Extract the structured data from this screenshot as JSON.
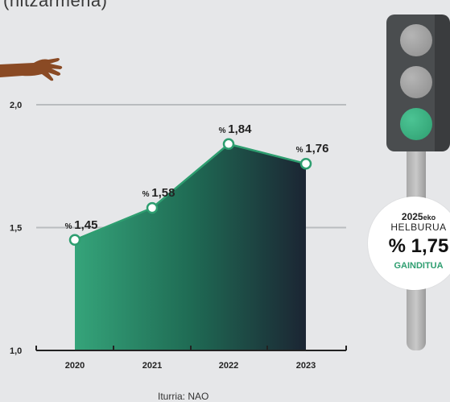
{
  "top_text": "(hitzarmena)",
  "source": "Iturria: NAO",
  "colors": {
    "accent": "#2e9e70",
    "area_dark": "#1c2a33",
    "background": "#e6e7e9"
  },
  "badge": {
    "year": "2025",
    "year_suffix": "eko",
    "title": "HELBURUA",
    "value": "% 1,75",
    "note": "GAINDITUA"
  },
  "icons": [
    "hand-icon",
    "traffic-light-icon"
  ],
  "chart_data": {
    "type": "area",
    "categories": [
      "2020",
      "2021",
      "2022",
      "2023"
    ],
    "values": [
      1.45,
      1.58,
      1.84,
      1.76
    ],
    "point_labels": [
      {
        "prefix": "%",
        "value": "1,45"
      },
      {
        "prefix": "%",
        "value": "1,58"
      },
      {
        "prefix": "%",
        "value": "1,84"
      },
      {
        "prefix": "%",
        "value": "1,76"
      }
    ],
    "y_ticks": [
      "2,0",
      "1,5",
      "1,0"
    ],
    "y_tick_values": [
      2.0,
      1.5,
      1.0
    ],
    "ylim": [
      1.0,
      2.0
    ],
    "grid": true
  }
}
